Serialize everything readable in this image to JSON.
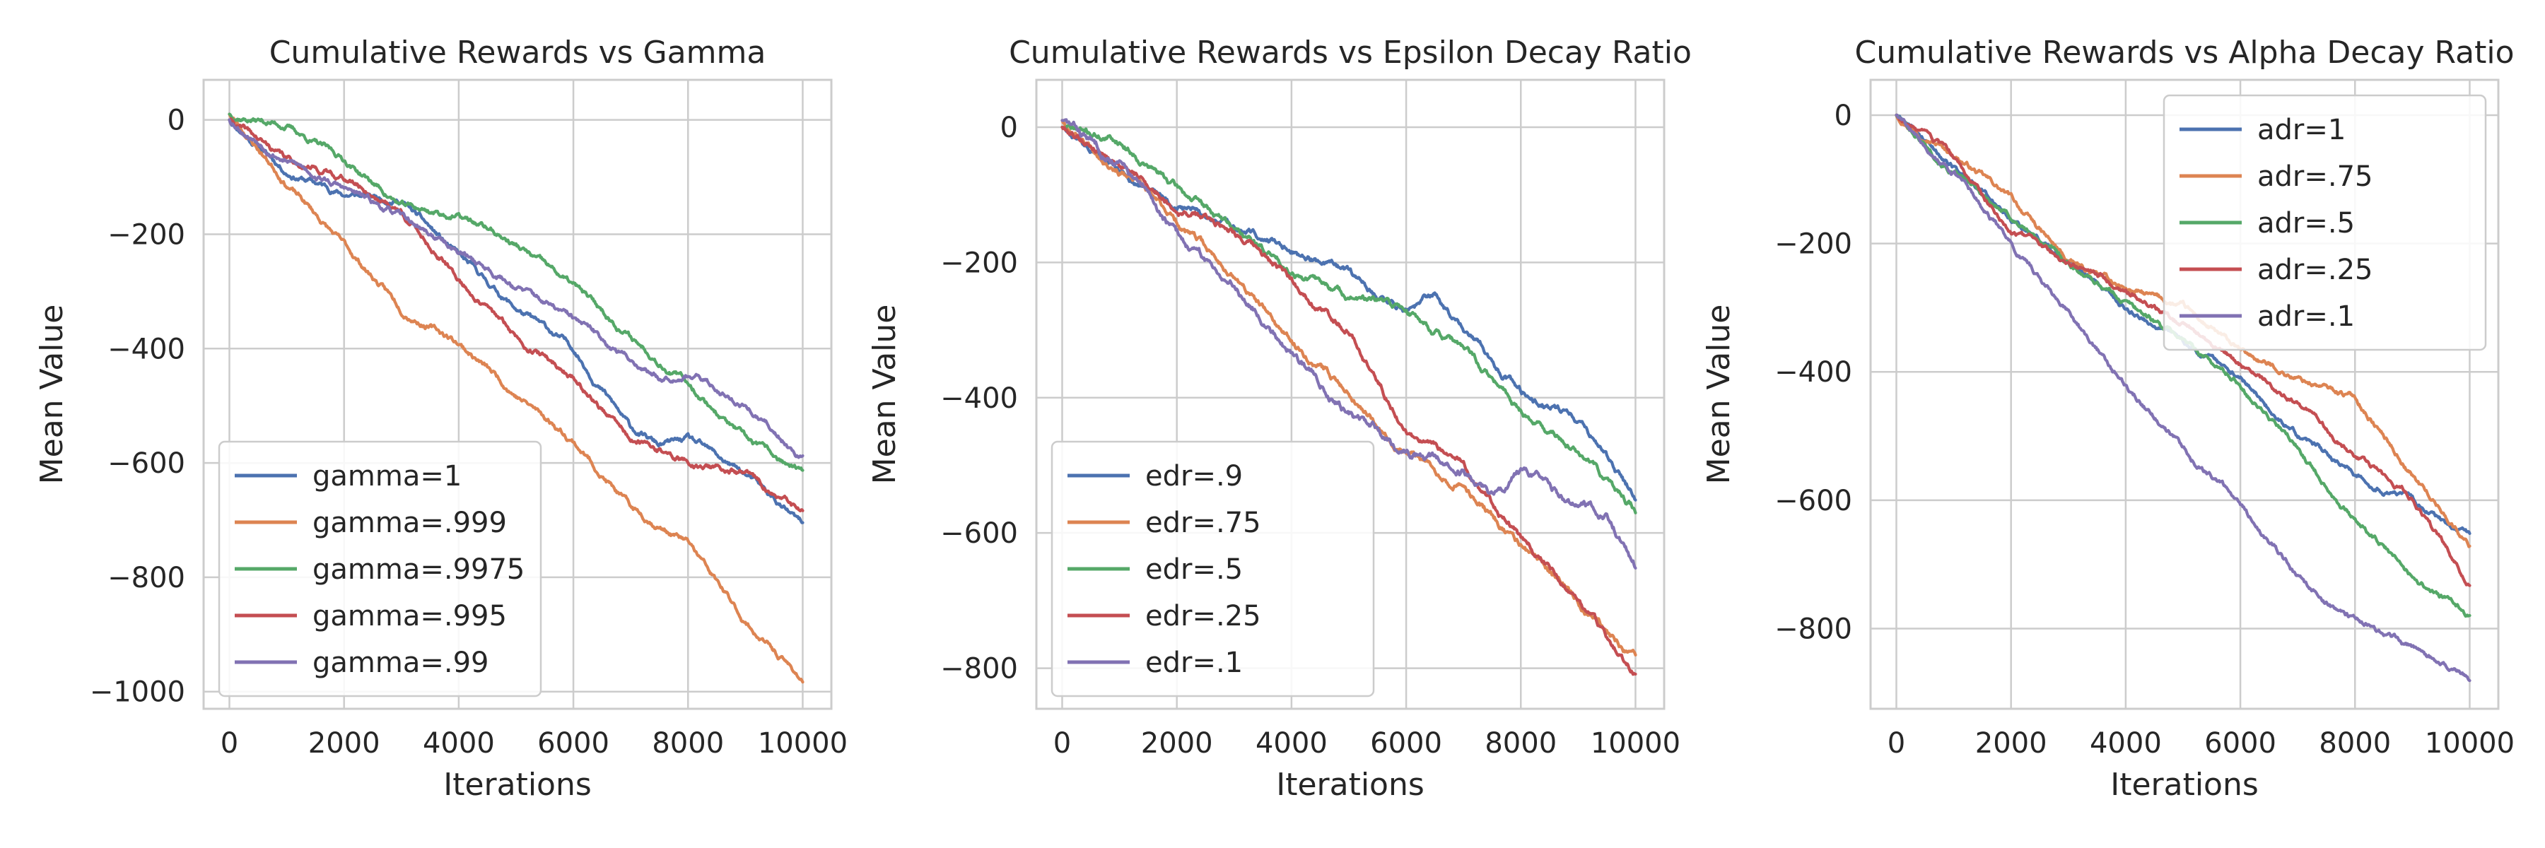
{
  "chart_data": [
    {
      "type": "line",
      "title": "Cumulative Rewards vs Gamma",
      "xlabel": "Iterations",
      "ylabel": "Mean Value",
      "xlim": [
        -450,
        10500
      ],
      "ylim": [
        -1030,
        70
      ],
      "xticks": [
        0,
        2000,
        4000,
        6000,
        8000,
        10000
      ],
      "yticks": [
        0,
        -200,
        -400,
        -600,
        -800,
        -1000
      ],
      "grid": true,
      "legend_position": "lower-left",
      "series": [
        {
          "name": "gamma=1",
          "color": "#4c72b0",
          "noise": 6,
          "seed": 11,
          "x": [
            0,
            1000,
            2000,
            3000,
            4000,
            5000,
            6000,
            7000,
            7500,
            8000,
            9000,
            10000
          ],
          "y": [
            0,
            -90,
            -130,
            -140,
            -240,
            -330,
            -400,
            -540,
            -570,
            -560,
            -620,
            -710
          ]
        },
        {
          "name": "gamma=.999",
          "color": "#dd8452",
          "noise": 6,
          "seed": 23,
          "x": [
            0,
            1000,
            2000,
            3000,
            4000,
            5000,
            6000,
            7000,
            8000,
            9000,
            10000
          ],
          "y": [
            10,
            -110,
            -220,
            -330,
            -390,
            -480,
            -560,
            -680,
            -740,
            -880,
            -980
          ]
        },
        {
          "name": "gamma=.9975",
          "color": "#55a868",
          "noise": 6,
          "seed": 37,
          "x": [
            0,
            1000,
            1500,
            2000,
            3000,
            4000,
            4500,
            5000,
            6000,
            7000,
            8000,
            9000,
            10000
          ],
          "y": [
            10,
            -10,
            -40,
            -70,
            -150,
            -170,
            -190,
            -220,
            -290,
            -380,
            -460,
            -560,
            -620
          ]
        },
        {
          "name": "gamma=.995",
          "color": "#c44e52",
          "noise": 6,
          "seed": 41,
          "x": [
            0,
            1000,
            2000,
            3000,
            4000,
            5000,
            6000,
            7000,
            8000,
            9000,
            10000
          ],
          "y": [
            0,
            -70,
            -100,
            -160,
            -280,
            -380,
            -450,
            -560,
            -600,
            -620,
            -690
          ]
        },
        {
          "name": "gamma=.99",
          "color": "#8172b3",
          "noise": 6,
          "seed": 53,
          "x": [
            0,
            1000,
            2000,
            3000,
            4000,
            5000,
            6000,
            7000,
            7500,
            8000,
            9000,
            10000
          ],
          "y": [
            0,
            -70,
            -120,
            -170,
            -230,
            -290,
            -350,
            -420,
            -450,
            -440,
            -500,
            -590
          ]
        }
      ]
    },
    {
      "type": "line",
      "title": "Cumulative Rewards vs Epsilon Decay Ratio",
      "xlabel": "Iterations",
      "ylabel": "Mean Value",
      "xlim": [
        -450,
        10500
      ],
      "ylim": [
        -860,
        70
      ],
      "xticks": [
        0,
        2000,
        4000,
        6000,
        8000,
        10000
      ],
      "yticks": [
        0,
        -200,
        -400,
        -600,
        -800
      ],
      "grid": true,
      "legend_position": "lower-left",
      "series": [
        {
          "name": "edr=.9",
          "color": "#4c72b0",
          "noise": 6,
          "seed": 61,
          "x": [
            0,
            1000,
            2000,
            3000,
            4000,
            5000,
            6000,
            6500,
            7000,
            8000,
            9000,
            10000
          ],
          "y": [
            0,
            -70,
            -120,
            -150,
            -180,
            -220,
            -270,
            -250,
            -300,
            -390,
            -430,
            -550
          ]
        },
        {
          "name": "edr=.75",
          "color": "#dd8452",
          "noise": 6,
          "seed": 67,
          "x": [
            0,
            1000,
            2000,
            3000,
            4000,
            5000,
            6000,
            7000,
            8000,
            9000,
            10000
          ],
          "y": [
            10,
            -60,
            -140,
            -220,
            -320,
            -390,
            -480,
            -530,
            -620,
            -700,
            -790
          ]
        },
        {
          "name": "edr=.5",
          "color": "#55a868",
          "noise": 6,
          "seed": 71,
          "x": [
            0,
            1000,
            2000,
            3000,
            4000,
            5000,
            6000,
            7000,
            8000,
            9000,
            10000
          ],
          "y": [
            0,
            -20,
            -90,
            -150,
            -210,
            -250,
            -270,
            -330,
            -420,
            -480,
            -570
          ]
        },
        {
          "name": "edr=.25",
          "color": "#c44e52",
          "noise": 6,
          "seed": 79,
          "x": [
            0,
            1000,
            2000,
            3000,
            4000,
            5000,
            6000,
            7000,
            8000,
            9000,
            10000
          ],
          "y": [
            0,
            -50,
            -120,
            -150,
            -230,
            -300,
            -450,
            -500,
            -610,
            -700,
            -810
          ]
        },
        {
          "name": "edr=.1",
          "color": "#8172b3",
          "noise": 7,
          "seed": 83,
          "x": [
            0,
            1000,
            2000,
            2500,
            3000,
            4000,
            5000,
            6000,
            7000,
            7500,
            8000,
            9000,
            9500,
            10000
          ],
          "y": [
            10,
            -50,
            -160,
            -200,
            -230,
            -330,
            -420,
            -480,
            -510,
            -540,
            -510,
            -560,
            -570,
            -650
          ]
        }
      ]
    },
    {
      "type": "line",
      "title": "Cumulative Rewards vs Alpha Decay Ratio",
      "xlabel": "Iterations",
      "ylabel": "Mean Value",
      "xlim": [
        -450,
        10500
      ],
      "ylim": [
        -925,
        55
      ],
      "xticks": [
        0,
        2000,
        4000,
        6000,
        8000,
        10000
      ],
      "yticks": [
        0,
        -200,
        -400,
        -600,
        -800
      ],
      "grid": true,
      "legend_position": "upper-right",
      "series": [
        {
          "name": "adr=1",
          "color": "#4c72b0",
          "noise": 5,
          "seed": 89,
          "x": [
            0,
            1000,
            2000,
            3000,
            4000,
            5000,
            6000,
            7000,
            8000,
            9000,
            10000
          ],
          "y": [
            0,
            -80,
            -160,
            -230,
            -300,
            -350,
            -410,
            -500,
            -560,
            -600,
            -660
          ]
        },
        {
          "name": "adr=.75",
          "color": "#dd8452",
          "noise": 5,
          "seed": 97,
          "x": [
            0,
            1000,
            2000,
            3000,
            4000,
            5000,
            6000,
            7000,
            8000,
            8500,
            9000,
            10000
          ],
          "y": [
            0,
            -60,
            -130,
            -230,
            -270,
            -300,
            -370,
            -410,
            -440,
            -500,
            -560,
            -670
          ]
        },
        {
          "name": "adr=.5",
          "color": "#55a868",
          "noise": 5,
          "seed": 101,
          "x": [
            0,
            1000,
            2000,
            3000,
            4000,
            5000,
            6000,
            7000,
            8000,
            9000,
            10000
          ],
          "y": [
            0,
            -90,
            -160,
            -230,
            -290,
            -350,
            -420,
            -520,
            -630,
            -720,
            -780
          ]
        },
        {
          "name": "adr=.25",
          "color": "#c44e52",
          "noise": 5,
          "seed": 103,
          "x": [
            0,
            1000,
            2000,
            3000,
            4000,
            5000,
            6000,
            7000,
            8000,
            9000,
            10000
          ],
          "y": [
            0,
            -70,
            -180,
            -230,
            -270,
            -330,
            -390,
            -450,
            -530,
            -600,
            -730
          ]
        },
        {
          "name": "adr=.1",
          "color": "#8172b3",
          "noise": 5,
          "seed": 107,
          "x": [
            0,
            1000,
            2000,
            3000,
            4000,
            5000,
            6000,
            7000,
            8000,
            9000,
            10000
          ],
          "y": [
            0,
            -90,
            -200,
            -310,
            -420,
            -520,
            -610,
            -720,
            -790,
            -830,
            -880
          ]
        }
      ]
    }
  ]
}
